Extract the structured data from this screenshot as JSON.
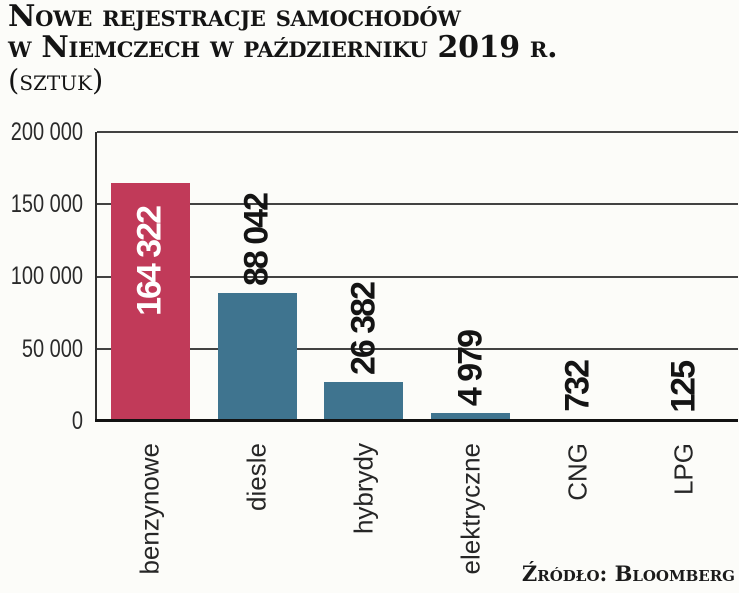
{
  "title": {
    "line1": "Nowe rejestracje samochodów",
    "line2": "w Niemczech w październiku 2019 r.",
    "unit_line": "(sztuk)"
  },
  "source_text": "Źródło: Bloomberg",
  "chart_data": {
    "type": "bar",
    "title": "Nowe rejestracje samochodów w Niemczech w październiku 2019 r. (sztuk)",
    "categories": [
      "benzynowe",
      "diesle",
      "hybrydy",
      "elektryczne",
      "CNG",
      "LPG"
    ],
    "values": [
      164322,
      88042,
      26382,
      4979,
      732,
      125
    ],
    "value_labels": [
      "164 322",
      "88 042",
      "26 382",
      "4 979",
      "732",
      "125"
    ],
    "xlabel": "",
    "ylabel": "",
    "ylim": [
      0,
      200000
    ],
    "ytick_interval": 50000,
    "yticks": [
      "200 000",
      "150 000",
      "100 000",
      "50 000",
      "0"
    ],
    "ytick_values": [
      200000,
      150000,
      100000,
      50000,
      0
    ],
    "grid": true,
    "legend": false,
    "highlight_color": "#c13a59",
    "default_color": "#3f748f",
    "bar_colors": [
      "#c13a59",
      "#3f748f",
      "#3f748f",
      "#3f748f",
      "#3f748f",
      "#3f748f"
    ],
    "value_label_inside": [
      true,
      false,
      false,
      false,
      false,
      false
    ],
    "value_label_colors": [
      "#ffffff",
      "#141414",
      "#141414",
      "#141414",
      "#141414",
      "#141414"
    ]
  }
}
